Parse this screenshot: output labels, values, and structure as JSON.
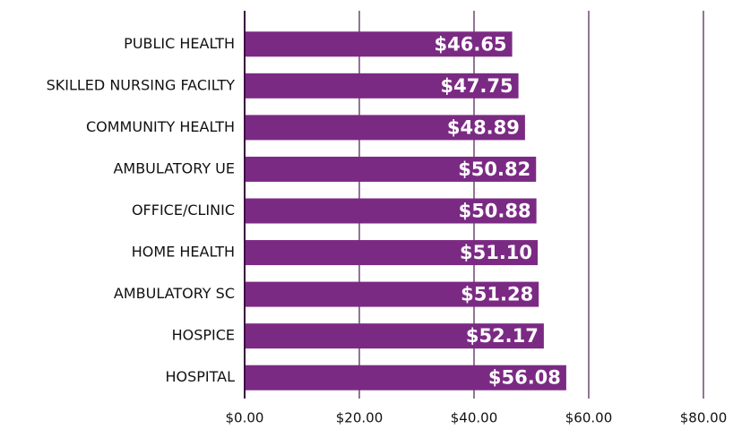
{
  "chart_data": {
    "type": "bar",
    "orientation": "horizontal",
    "categories": [
      "PUBLIC HEALTH",
      "SKILLED NURSING FACILTY",
      "COMMUNITY HEALTH",
      "AMBULATORY UE",
      "OFFICE/CLINIC",
      "HOME HEALTH",
      "AMBULATORY SC",
      "HOSPICE",
      "HOSPITAL"
    ],
    "values": [
      46.65,
      47.75,
      48.89,
      50.82,
      50.88,
      51.1,
      51.28,
      52.17,
      56.08
    ],
    "value_labels": [
      "$46.65",
      "$47.75",
      "$48.89",
      "$50.82",
      "$50.88",
      "$51.10",
      "$51.28",
      "$52.17",
      "$56.08"
    ],
    "color": "#7b2a84",
    "xlim": [
      0,
      80
    ],
    "xticks": [
      {
        "value": 0,
        "label": "$0.00"
      },
      {
        "value": 20,
        "label": "$20.00"
      },
      {
        "value": 40,
        "label": "$40.00"
      },
      {
        "value": 60,
        "label": "$60.00"
      },
      {
        "value": 80,
        "label": "$80.00"
      }
    ],
    "grid": true
  }
}
